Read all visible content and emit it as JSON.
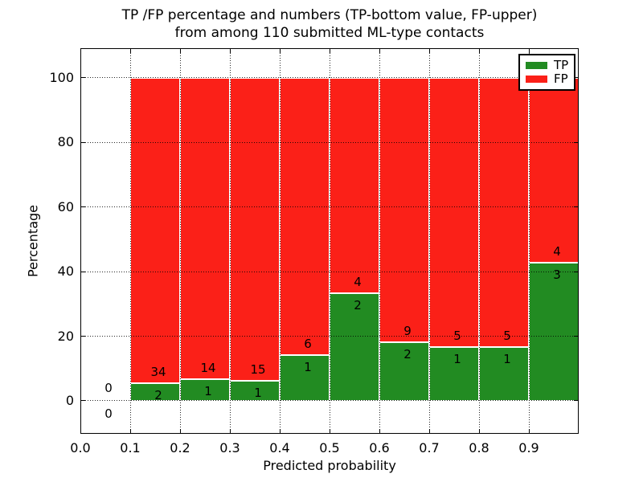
{
  "figure": {
    "title_line1": "TP /FP percentage and numbers (TP-bottom value, FP-upper)",
    "title_line2": "from among 110 submitted ML-type contacts"
  },
  "axes": {
    "xlabel": "Predicted probability",
    "ylabel": "Percentage"
  },
  "legend": {
    "position": "upper right",
    "items": [
      {
        "label": "TP",
        "color": "#228b22"
      },
      {
        "label": "FP",
        "color": "#fb2018"
      }
    ]
  },
  "chart_data": {
    "type": "bar",
    "stacked": true,
    "title": "TP /FP percentage and numbers (TP-bottom value, FP-upper) from among 110 submitted ML-type contacts",
    "xlabel": "Predicted probability",
    "ylabel": "Percentage",
    "grid": "dotted",
    "legend_position": "upper right",
    "xlim": [
      0.0,
      1.0
    ],
    "ylim": [
      -10.2,
      109.2
    ],
    "x_tick_labels": [
      "0.0",
      "0.1",
      "0.2",
      "0.3",
      "0.4",
      "0.5",
      "0.6",
      "0.7",
      "0.8",
      "0.9"
    ],
    "x_tick_values": [
      0.0,
      0.1,
      0.2,
      0.3,
      0.4,
      0.5,
      0.6,
      0.7,
      0.8,
      0.9
    ],
    "y_tick_labels": [
      "0",
      "20",
      "40",
      "60",
      "80",
      "100"
    ],
    "y_tick_values": [
      0,
      20,
      40,
      60,
      80,
      100
    ],
    "series": [
      {
        "name": "TP",
        "color": "#228b22",
        "counts": [
          0,
          2,
          1,
          1,
          1,
          2,
          2,
          1,
          1,
          3
        ]
      },
      {
        "name": "FP",
        "color": "#fb2018",
        "counts": [
          0,
          34,
          14,
          15,
          6,
          4,
          9,
          5,
          5,
          4
        ]
      }
    ],
    "bins": [
      {
        "x0": 0.0,
        "x1": 0.1,
        "tp": 0,
        "fp": 0,
        "tp_pct": 0.0,
        "fp_pct": 0.0
      },
      {
        "x0": 0.1,
        "x1": 0.2,
        "tp": 2,
        "fp": 34,
        "tp_pct": 5.56,
        "fp_pct": 94.44
      },
      {
        "x0": 0.2,
        "x1": 0.3,
        "tp": 1,
        "fp": 14,
        "tp_pct": 6.67,
        "fp_pct": 93.33
      },
      {
        "x0": 0.3,
        "x1": 0.4,
        "tp": 1,
        "fp": 15,
        "tp_pct": 6.25,
        "fp_pct": 93.75
      },
      {
        "x0": 0.4,
        "x1": 0.5,
        "tp": 1,
        "fp": 6,
        "tp_pct": 14.29,
        "fp_pct": 85.71
      },
      {
        "x0": 0.5,
        "x1": 0.6,
        "tp": 2,
        "fp": 4,
        "tp_pct": 33.33,
        "fp_pct": 66.67
      },
      {
        "x0": 0.6,
        "x1": 0.7,
        "tp": 2,
        "fp": 9,
        "tp_pct": 18.18,
        "fp_pct": 81.82
      },
      {
        "x0": 0.7,
        "x1": 0.8,
        "tp": 1,
        "fp": 5,
        "tp_pct": 16.67,
        "fp_pct": 83.33
      },
      {
        "x0": 0.8,
        "x1": 0.9,
        "tp": 1,
        "fp": 5,
        "tp_pct": 16.67,
        "fp_pct": 83.33
      },
      {
        "x0": 0.9,
        "x1": 1.0,
        "tp": 3,
        "fp": 4,
        "tp_pct": 42.86,
        "fp_pct": 57.14
      }
    ]
  }
}
